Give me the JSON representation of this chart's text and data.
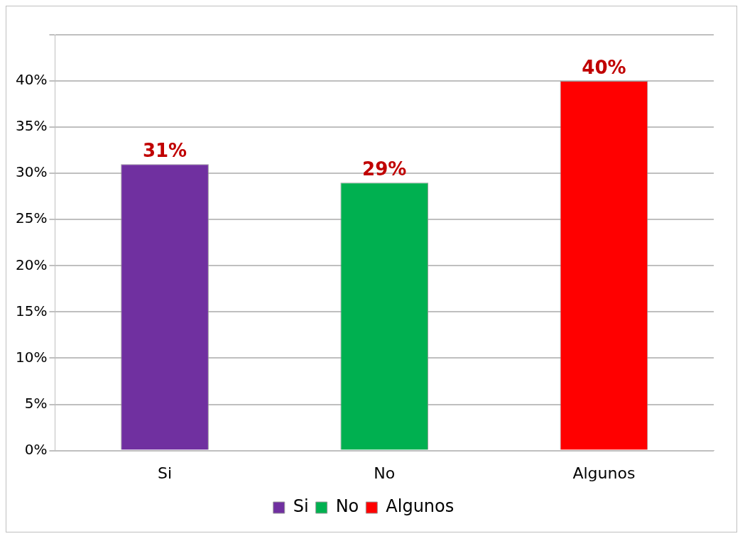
{
  "chart_data": {
    "type": "bar",
    "categories": [
      "Si",
      "No",
      "Algunos"
    ],
    "series": [
      {
        "name": "Si",
        "color": "#7030a0",
        "values": [
          31,
          null,
          null
        ],
        "value_labels": [
          "31%",
          null,
          null
        ]
      },
      {
        "name": "No",
        "color": "#00b050",
        "values": [
          null,
          29,
          null
        ],
        "value_labels": [
          null,
          "29%",
          null
        ]
      },
      {
        "name": "Algunos",
        "color": "#ff0000",
        "values": [
          null,
          null,
          40
        ],
        "value_labels": [
          null,
          null,
          "40%"
        ]
      }
    ],
    "ylim": [
      0,
      45
    ],
    "yticks": [
      {
        "value": 0,
        "label": "0%"
      },
      {
        "value": 5,
        "label": "5%"
      },
      {
        "value": 10,
        "label": "10%"
      },
      {
        "value": 15,
        "label": "15%"
      },
      {
        "value": 20,
        "label": "20%"
      },
      {
        "value": 25,
        "label": "25%"
      },
      {
        "value": 30,
        "label": "30%"
      },
      {
        "value": 35,
        "label": "35%"
      },
      {
        "value": 40,
        "label": "40%"
      },
      {
        "value": 45,
        "label": null
      }
    ],
    "grid": "y",
    "legend": "bottom"
  }
}
